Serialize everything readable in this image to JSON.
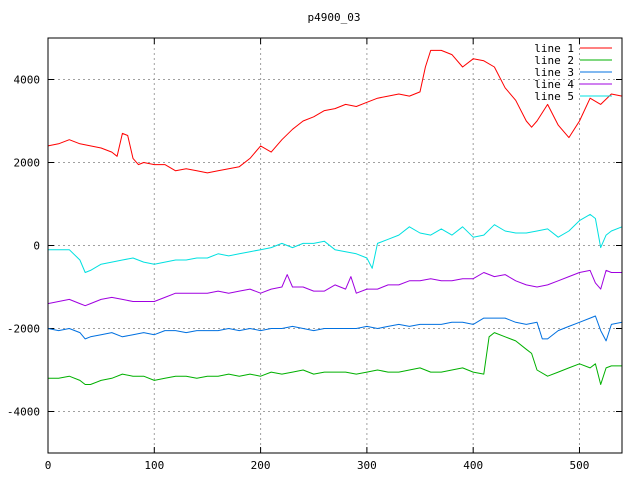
{
  "chart_data": {
    "type": "line",
    "title": "p4900_03",
    "xlabel": "",
    "ylabel": "",
    "xlim": [
      0,
      540
    ],
    "ylim": [
      -5000,
      5000
    ],
    "x_ticks": [
      0,
      100,
      200,
      300,
      400,
      500
    ],
    "y_ticks": [
      -4000,
      -2000,
      0,
      2000,
      4000
    ],
    "grid": true,
    "legend_position": "top-right",
    "series": [
      {
        "name": "line 1",
        "color": "#ff0000",
        "x": [
          0,
          10,
          20,
          30,
          40,
          50,
          60,
          65,
          70,
          75,
          80,
          85,
          90,
          100,
          110,
          120,
          130,
          140,
          150,
          160,
          170,
          180,
          190,
          200,
          210,
          220,
          230,
          240,
          250,
          260,
          270,
          280,
          290,
          300,
          310,
          320,
          330,
          340,
          350,
          355,
          360,
          370,
          380,
          390,
          400,
          410,
          420,
          430,
          440,
          450,
          455,
          460,
          470,
          480,
          490,
          500,
          510,
          520,
          530,
          540
        ],
        "values": [
          2400,
          2450,
          2550,
          2450,
          2400,
          2350,
          2250,
          2150,
          2700,
          2650,
          2100,
          1950,
          2000,
          1950,
          1950,
          1800,
          1850,
          1800,
          1750,
          1800,
          1850,
          1900,
          2100,
          2400,
          2250,
          2550,
          2800,
          3000,
          3100,
          3250,
          3300,
          3400,
          3350,
          3450,
          3550,
          3600,
          3650,
          3600,
          3700,
          4300,
          4700,
          4700,
          4600,
          4300,
          4500,
          4450,
          4300,
          3800,
          3500,
          3000,
          2850,
          3000,
          3400,
          2900,
          2600,
          3000,
          3550,
          3400,
          3650,
          3600
        ]
      },
      {
        "name": "line 2",
        "color": "#00b000",
        "x": [
          0,
          10,
          20,
          30,
          35,
          40,
          50,
          60,
          70,
          80,
          90,
          100,
          110,
          120,
          130,
          140,
          150,
          160,
          170,
          180,
          190,
          200,
          210,
          220,
          230,
          240,
          250,
          260,
          270,
          280,
          290,
          300,
          310,
          320,
          330,
          340,
          350,
          360,
          370,
          380,
          390,
          400,
          410,
          415,
          420,
          430,
          440,
          450,
          455,
          460,
          470,
          480,
          490,
          500,
          510,
          515,
          520,
          525,
          530,
          540
        ],
        "values": [
          -3200,
          -3200,
          -3150,
          -3250,
          -3350,
          -3350,
          -3250,
          -3200,
          -3100,
          -3150,
          -3150,
          -3250,
          -3200,
          -3150,
          -3150,
          -3200,
          -3150,
          -3150,
          -3100,
          -3150,
          -3100,
          -3150,
          -3050,
          -3100,
          -3050,
          -3000,
          -3100,
          -3050,
          -3050,
          -3050,
          -3100,
          -3050,
          -3000,
          -3050,
          -3050,
          -3000,
          -2950,
          -3050,
          -3050,
          -3000,
          -2950,
          -3050,
          -3100,
          -2200,
          -2100,
          -2200,
          -2300,
          -2500,
          -2600,
          -3000,
          -3150,
          -3050,
          -2950,
          -2850,
          -2950,
          -2850,
          -3350,
          -2950,
          -2900,
          -2900
        ]
      },
      {
        "name": "line 3",
        "color": "#0070e0",
        "x": [
          0,
          10,
          20,
          30,
          35,
          40,
          50,
          60,
          70,
          80,
          90,
          100,
          110,
          120,
          130,
          140,
          150,
          160,
          170,
          180,
          190,
          200,
          210,
          220,
          230,
          240,
          250,
          260,
          270,
          280,
          290,
          300,
          310,
          320,
          330,
          340,
          350,
          360,
          370,
          380,
          390,
          400,
          410,
          420,
          430,
          440,
          450,
          460,
          465,
          470,
          480,
          490,
          500,
          510,
          515,
          520,
          525,
          530,
          540
        ],
        "values": [
          -2000,
          -2050,
          -2000,
          -2100,
          -2250,
          -2200,
          -2150,
          -2100,
          -2200,
          -2150,
          -2100,
          -2150,
          -2050,
          -2050,
          -2100,
          -2050,
          -2050,
          -2050,
          -2000,
          -2050,
          -2000,
          -2050,
          -2000,
          -2000,
          -1950,
          -2000,
          -2050,
          -2000,
          -2000,
          -2000,
          -2000,
          -1950,
          -2000,
          -1950,
          -1900,
          -1950,
          -1900,
          -1900,
          -1900,
          -1850,
          -1850,
          -1900,
          -1750,
          -1750,
          -1750,
          -1850,
          -1900,
          -1850,
          -2250,
          -2250,
          -2050,
          -1950,
          -1850,
          -1750,
          -1700,
          -2050,
          -2300,
          -1900,
          -1850
        ]
      },
      {
        "name": "line 4",
        "color": "#a000e0",
        "x": [
          0,
          10,
          20,
          30,
          35,
          40,
          50,
          60,
          70,
          80,
          90,
          100,
          110,
          120,
          130,
          140,
          150,
          160,
          170,
          180,
          190,
          200,
          210,
          220,
          225,
          230,
          240,
          250,
          260,
          270,
          280,
          285,
          290,
          300,
          310,
          320,
          330,
          340,
          350,
          360,
          370,
          380,
          390,
          400,
          410,
          420,
          430,
          440,
          450,
          460,
          470,
          480,
          490,
          500,
          510,
          515,
          520,
          525,
          530,
          540
        ],
        "values": [
          -1400,
          -1350,
          -1300,
          -1400,
          -1450,
          -1400,
          -1300,
          -1250,
          -1300,
          -1350,
          -1350,
          -1350,
          -1250,
          -1150,
          -1150,
          -1150,
          -1150,
          -1100,
          -1150,
          -1100,
          -1050,
          -1150,
          -1050,
          -1000,
          -700,
          -1000,
          -1000,
          -1100,
          -1100,
          -950,
          -1050,
          -750,
          -1150,
          -1050,
          -1050,
          -950,
          -950,
          -850,
          -850,
          -800,
          -850,
          -850,
          -800,
          -800,
          -650,
          -750,
          -700,
          -850,
          -950,
          -1000,
          -950,
          -850,
          -750,
          -650,
          -600,
          -900,
          -1050,
          -600,
          -650,
          -650
        ]
      },
      {
        "name": "line 5",
        "color": "#00e0e0",
        "x": [
          0,
          10,
          20,
          30,
          35,
          40,
          50,
          60,
          70,
          80,
          90,
          100,
          110,
          120,
          130,
          140,
          150,
          160,
          170,
          180,
          190,
          200,
          210,
          220,
          230,
          240,
          250,
          260,
          270,
          280,
          290,
          300,
          305,
          310,
          320,
          330,
          340,
          350,
          360,
          370,
          380,
          390,
          400,
          410,
          420,
          430,
          440,
          450,
          460,
          470,
          480,
          490,
          500,
          510,
          515,
          520,
          525,
          530,
          540
        ],
        "values": [
          -100,
          -100,
          -100,
          -350,
          -650,
          -600,
          -450,
          -400,
          -350,
          -300,
          -400,
          -450,
          -400,
          -350,
          -350,
          -300,
          -300,
          -200,
          -250,
          -200,
          -150,
          -100,
          -50,
          50,
          -50,
          50,
          50,
          100,
          -100,
          -150,
          -200,
          -300,
          -550,
          50,
          150,
          250,
          450,
          300,
          250,
          400,
          250,
          450,
          200,
          250,
          500,
          350,
          300,
          300,
          350,
          400,
          200,
          350,
          600,
          750,
          650,
          -50,
          250,
          350,
          450
        ]
      }
    ]
  }
}
